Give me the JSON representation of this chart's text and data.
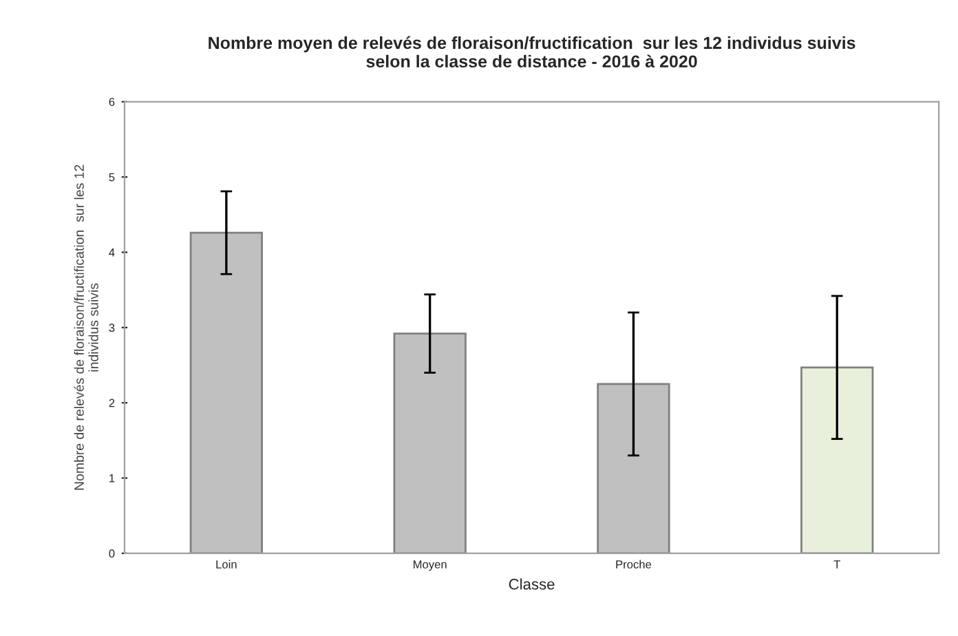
{
  "chart_data": {
    "type": "bar",
    "title": "Nombre moyen de relevés de floraison/fructification  sur les 12 individus suivis\nselon la classe de distance - 2016 à 2020",
    "xlabel": "Classe",
    "ylabel": "Nombre de relevés de floraison/fructification  sur les 12\nindividus suivis",
    "categories": [
      "Loin",
      "Moyen",
      "Proche",
      "T"
    ],
    "values": [
      4.26,
      2.92,
      2.25,
      2.47
    ],
    "errors": [
      0.55,
      0.52,
      0.95,
      0.95
    ],
    "colors": [
      "#c0c0c0",
      "#c0c0c0",
      "#c0c0c0",
      "#e8f0dc"
    ],
    "ylim": [
      0,
      6
    ],
    "yticks": [
      0,
      1,
      2,
      3,
      4,
      5,
      6
    ],
    "grid": false
  }
}
